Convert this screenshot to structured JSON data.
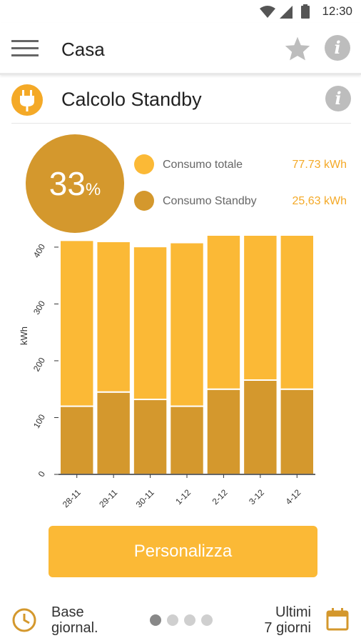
{
  "status_bar": {
    "time": "12:30"
  },
  "app_bar": {
    "title": "Casa",
    "menu_icon": "hamburger-menu-icon",
    "star_icon": "star-icon",
    "info_icon": "info-icon"
  },
  "section": {
    "title": "Calcolo Standby",
    "icon": "plug-icon",
    "info_icon": "info-icon"
  },
  "summary": {
    "percent": "33",
    "percent_sign": "%",
    "legend": [
      {
        "label": "Consumo totale",
        "value": "77.73 kWh",
        "color": "#fbb936"
      },
      {
        "label": "Consumo Standby",
        "value": "25,63 kWh",
        "color": "#d4982d"
      }
    ]
  },
  "chart_data": {
    "type": "bar",
    "stacked": true,
    "ylabel": "kWh",
    "ylim": [
      0,
      420
    ],
    "yticks": [
      0,
      100,
      200,
      300,
      400
    ],
    "categories": [
      "28-11",
      "29-11",
      "30-11",
      "1-12",
      "2-12",
      "3-12",
      "4-12"
    ],
    "series": [
      {
        "values": [
          120,
          145,
          132,
          120,
          150,
          166,
          150
        ],
        "color": "#d4982d"
      },
      {
        "values": [
          292,
          265,
          269,
          288,
          278,
          260,
          277
        ],
        "color": "#fbb936"
      }
    ]
  },
  "button": {
    "label": "Personalizza"
  },
  "bottom_bar": {
    "left_line1": "Base",
    "left_line2": "giornal.",
    "left_icon": "clock-icon",
    "right_line1": "Ultimi",
    "right_line2": "7 giorni",
    "right_icon": "calendar-icon",
    "page_dots": 4,
    "active_dot": 0
  },
  "colors": {
    "accent": "#fbb936",
    "accent_dark": "#d4982d",
    "gray_icon": "#bdbdbd"
  }
}
